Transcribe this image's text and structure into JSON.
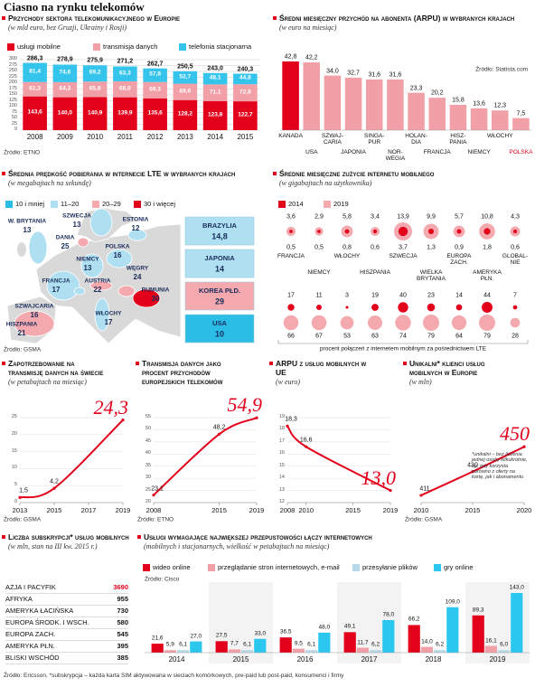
{
  "title": "Ciasno na rynku telekomów",
  "footer": "Źródło: Ericsson, *subskrypcja – każda karta SIM aktywowana w sieciach komórkowych, pre-paid lub post-paid, konsumenci i firmy",
  "chart_data": [
    {
      "type": "stacked_bar",
      "title": "Przychody sektora telekomunikacyjnego w Europie",
      "subtitle": "(w mld euro, bez Gruzji, Ukrainy i Rosji)",
      "source": "Źródło: ETNO",
      "categories": [
        "2008",
        "2009",
        "2010",
        "2011",
        "2012",
        "2013",
        "2014",
        "2015"
      ],
      "series": [
        {
          "name": "usługi mobilne",
          "color": "#e3001b",
          "values": [
            143.6,
            140.0,
            140.9,
            139.9,
            135.6,
            128.2,
            123.8,
            122.7
          ],
          "value_labels": [
            "143,6",
            "140,0",
            "140,9",
            "139,9",
            "135,6",
            "128,2",
            "123,8",
            "122,7"
          ]
        },
        {
          "name": "transmisja danych",
          "color": "#f2a0a7",
          "values": [
            61.3,
            64.3,
            65.8,
            68.0,
            69.3,
            69.6,
            71.1,
            72.8
          ],
          "value_labels": [
            "61,3",
            "64,3",
            "65,8",
            "68,0",
            "69,3",
            "69,6",
            "71,1",
            "72,8"
          ]
        },
        {
          "name": "telefonia stacjonarna",
          "color": "#35c5ec",
          "values": [
            81.4,
            74.6,
            69.2,
            63.3,
            57.8,
            52.7,
            48.1,
            44.8
          ],
          "value_labels": [
            "81,4",
            "74,6",
            "69,2",
            "63,3",
            "57,8",
            "52,7",
            "48,1",
            "44,8"
          ]
        }
      ],
      "totals": [
        286.3,
        278.9,
        275.9,
        271.2,
        262.7,
        250.5,
        243.0,
        240.3
      ],
      "total_labels": [
        "286,3",
        "278,9",
        "275,9",
        "271,2",
        "262,7",
        "250,5",
        "243,0",
        "240,3"
      ],
      "ylim": [
        0,
        300
      ],
      "yticks": [
        0,
        25,
        50,
        75,
        100,
        125,
        150,
        175,
        200,
        225,
        250,
        275,
        300
      ],
      "grid": true
    },
    {
      "type": "bar",
      "title": "Średni miesięczny przychód na abonenta (ARPU) w wybranych krajach",
      "subtitle": "(w euro na miesiąc)",
      "source": "Źródło: Statista.com",
      "categories": [
        "KANADA",
        "USA",
        "SZWAJ-\nCARIA",
        "JAPONIA",
        "SINGA-\nPUR",
        "NOR-\nWEGIA",
        "HOLAN-\nDIA",
        "FRANCJA",
        "HISZ-\nPANIA",
        "NIEMCY",
        "WŁOCHY",
        "POLSKA"
      ],
      "values": [
        42.8,
        42.2,
        34.0,
        32.7,
        31.6,
        31.6,
        23.3,
        20.2,
        15.8,
        13.6,
        12.3,
        7.5
      ],
      "value_labels": [
        "42,8",
        "42,2",
        "34,0",
        "32,7",
        "31,6",
        "31,6",
        "23,3",
        "20,2",
        "15,8",
        "13,6",
        "12,3",
        "7,5"
      ],
      "colors": [
        "#e3001b",
        "#f2a0a7",
        "#f2a0a7",
        "#f2a0a7",
        "#f2a0a7",
        "#f2a0a7",
        "#f2a0a7",
        "#f2a0a7",
        "#f2a0a7",
        "#f2a0a7",
        "#f2a0a7",
        "#f2a0a7"
      ],
      "label_colors": [
        "#111",
        "#111",
        "#111",
        "#111",
        "#111",
        "#111",
        "#111",
        "#111",
        "#111",
        "#111",
        "#111",
        "#e3001b"
      ]
    },
    {
      "type": "map",
      "title": "Średnia prędkość pobierania w internecie LTE w wybranych krajach",
      "subtitle": "(w megabajtach na sekundę)",
      "source": "Źródło: GSMA",
      "legend": [
        {
          "name": "10 i mniej",
          "color": "#2bbde6"
        },
        {
          "name": "11–20",
          "color": "#aee0f1"
        },
        {
          "name": "20–29",
          "color": "#f4a9ae"
        },
        {
          "name": "30 i więcej",
          "color": "#e3001b"
        }
      ],
      "regions": [
        {
          "name": "W. BRYTANIA",
          "value": 13,
          "color": "#aee0f1"
        },
        {
          "name": "SZWECJA",
          "value": 13,
          "color": "#aee0f1"
        },
        {
          "name": "ESTONIA",
          "value": 12,
          "color": "#aee0f1"
        },
        {
          "name": "DANIA",
          "value": 25,
          "color": "#f4a9ae"
        },
        {
          "name": "POLSKA",
          "value": 16,
          "color": "#aee0f1"
        },
        {
          "name": "NIEMCY",
          "value": 13,
          "color": "#aee0f1"
        },
        {
          "name": "FRANCJA",
          "value": 17,
          "color": "#aee0f1"
        },
        {
          "name": "AUSTRIA",
          "value": 22,
          "color": "#f4a9ae"
        },
        {
          "name": "WĘGRY",
          "value": 24,
          "color": "#f4a9ae"
        },
        {
          "name": "RUMUNIA",
          "value": 30,
          "color": "#e3001b"
        },
        {
          "name": "SZWAJCARIA",
          "value": 16,
          "color": "#aee0f1"
        },
        {
          "name": "WŁOCHY",
          "value": 17,
          "color": "#aee0f1"
        },
        {
          "name": "HISZPANIA",
          "value": 21,
          "color": "#f4a9ae"
        }
      ],
      "boxes": [
        {
          "name": "BRAZYLIA",
          "value": 14.8,
          "value_label": "14,8",
          "color": "#aee0f1"
        },
        {
          "name": "JAPONIA",
          "value": 14,
          "color": "#aee0f1"
        },
        {
          "name": "KOREA PŁD.",
          "value": 29,
          "color": "#f4a9ae"
        },
        {
          "name": "USA",
          "value": 10,
          "color": "#2bbde6"
        }
      ]
    },
    {
      "type": "bubble",
      "title": "Średnie miesięczne zużycie internetu mobilnego",
      "subtitle": "(w gigabajtach na użytkownika)",
      "categories": [
        "FRANCJA",
        "NIEMCY",
        "WŁOCHY",
        "HISZPANIA",
        "SZWECJA",
        "WIELKA\nBRYTANIA",
        "EUROPA\nZACH.",
        "AMERYKA\nPŁN.",
        "GLOBAL-\nNIE"
      ],
      "series": [
        {
          "name": "2014",
          "color": "#e3001b",
          "values": [
            0.5,
            0.5,
            0.8,
            0.6,
            3.7,
            1.3,
            0.9,
            1.8,
            0.6
          ],
          "value_labels": [
            "0,5",
            "0,5",
            "0,8",
            "0,6",
            "3,7",
            "1,3",
            "0,9",
            "1,8",
            "0,6"
          ],
          "lte": [
            17,
            11,
            3,
            19,
            40,
            23,
            14,
            44,
            7
          ]
        },
        {
          "name": "2019",
          "color": "#f4a9ae",
          "values": [
            3.6,
            2.9,
            5.8,
            3.4,
            13.9,
            9.9,
            5.7,
            10.8,
            4.3
          ],
          "value_labels": [
            "3,6",
            "2,9",
            "5,8",
            "3,4",
            "13,9",
            "9,9",
            "5,7",
            "10,8",
            "4,3"
          ],
          "lte": [
            66,
            67,
            53,
            63,
            74,
            79,
            64,
            79,
            28
          ]
        }
      ],
      "caption": "procent połączeń z internetem mobilnym za pośrednictwem LTE"
    },
    {
      "type": "line",
      "title": "Zapotrzebowanie na transmisję danych na świecie",
      "subtitle": "(w petabajtach na miesiąc)",
      "source": "Źródło: GSMA",
      "color": "#e3001b",
      "x": [
        2013,
        2015,
        2019
      ],
      "values": [
        1.5,
        4.2,
        24.3
      ],
      "value_labels": [
        "1,5",
        "4,2",
        "24,3"
      ],
      "xlim": [
        2013,
        2019
      ],
      "xticks": [
        2013,
        2015,
        2017,
        2019
      ],
      "ylim": [
        0,
        25
      ],
      "yticks": [
        0,
        5,
        10,
        15,
        20,
        25
      ]
    },
    {
      "type": "line",
      "title": "Transmisja danych jako procent przychodów europejskich telekomów",
      "source": "Źródło: ETNO",
      "color": "#e3001b",
      "x": [
        2008,
        2015,
        2019
      ],
      "values": [
        23.1,
        48.2,
        54.9
      ],
      "value_labels": [
        "23,1",
        "48,2",
        "54,9"
      ],
      "xlim": [
        2008,
        2019
      ],
      "xticks": [
        2008,
        2015,
        2019
      ],
      "ylim": [
        20,
        55
      ],
      "yticks": [
        20,
        25,
        30,
        35,
        40,
        45,
        50,
        55
      ]
    },
    {
      "type": "line",
      "title": "ARPU z usług mobilnych w UE",
      "subtitle": "(w euro)",
      "color": "#e3001b",
      "x": [
        2008,
        2010,
        2019
      ],
      "values": [
        18.3,
        16.6,
        13.0
      ],
      "value_labels": [
        "18,3",
        "16,6",
        "13,0"
      ],
      "xlim": [
        2008,
        2019
      ],
      "xticks": [
        2008,
        2010,
        2015,
        2019
      ],
      "ylim": [
        12,
        19
      ],
      "yticks": [
        12,
        13,
        14,
        15,
        16,
        17,
        18,
        19
      ]
    },
    {
      "type": "line",
      "title": "Unikalni* klienci usług mobilnych w Europie",
      "subtitle": "(w mln)",
      "source": "Źródło: GSMA",
      "color": "#e3001b",
      "x": [
        2010,
        2015,
        2020
      ],
      "values": [
        411,
        430,
        450
      ],
      "xlim": [
        2010,
        2020
      ],
      "xticks": [
        2010,
        2015,
        2020
      ],
      "note": "*unikalni – bez liczenia jednej osoby kilkukrotnie, np. gdy korzysta zarówno z oferty na kartę, jak i abonamentu"
    },
    {
      "type": "table",
      "title": "Liczba subskrypcji* usług mobilnych",
      "subtitle": "(w mln, stan na III kw. 2015 r.)",
      "highlight_color": "#e3001b",
      "rows": [
        [
          "AZJA I PACYFIK",
          3690
        ],
        [
          "AFRYKA",
          955
        ],
        [
          "AMERYKA ŁACIŃSKA",
          730
        ],
        [
          "EUROPA ŚRODK. I WSCH.",
          580
        ],
        [
          "EUROPA ZACH.",
          545
        ],
        [
          "AMERYKA PŁN.",
          395
        ],
        [
          "BLISKI WSCHÓD",
          385
        ]
      ]
    },
    {
      "type": "grouped_bar",
      "title": "Usługi wymagające największej przepustowości łączy internetowych",
      "subtitle": "(mobilnych i stacjonarnych, wielkość w petabajtach na miesiąc)",
      "source": "Źródło: Cisco",
      "categories": [
        "2014",
        "2015",
        "2016",
        "2017",
        "2018",
        "2019"
      ],
      "series": [
        {
          "name": "wideo online",
          "color": "#e3001b",
          "values": [
            21.6,
            27.5,
            36.5,
            49.1,
            66.2,
            89.3
          ],
          "value_labels": [
            "21,6",
            "27,5",
            "36,5",
            "49,1",
            "66,2",
            "89,3"
          ]
        },
        {
          "name": "przeglądanie stron internetowych, e-mail",
          "color": "#f2a0a7",
          "values": [
            5.9,
            7.7,
            9.5,
            11.7,
            14.0,
            16.1
          ],
          "value_labels": [
            "5,9",
            "7,7",
            "9,5",
            "11,7",
            "14,0",
            "16,1"
          ]
        },
        {
          "name": "przesyłanie plików",
          "color": "#b7d9e8",
          "values": [
            6.1,
            6.1,
            6.1,
            6.2,
            6.2,
            6.0
          ],
          "value_labels": [
            "6,1",
            "6,1",
            "6,1",
            "6,2",
            "6,2",
            "6,0"
          ]
        },
        {
          "name": "gry online",
          "color": "#2cc7ef",
          "values": [
            27.0,
            33.0,
            48.0,
            78.0,
            109.0,
            143.0
          ],
          "value_labels": [
            "27,0",
            "33,0",
            "48,0",
            "78,0",
            "109,0",
            "143,0"
          ]
        }
      ]
    }
  ]
}
